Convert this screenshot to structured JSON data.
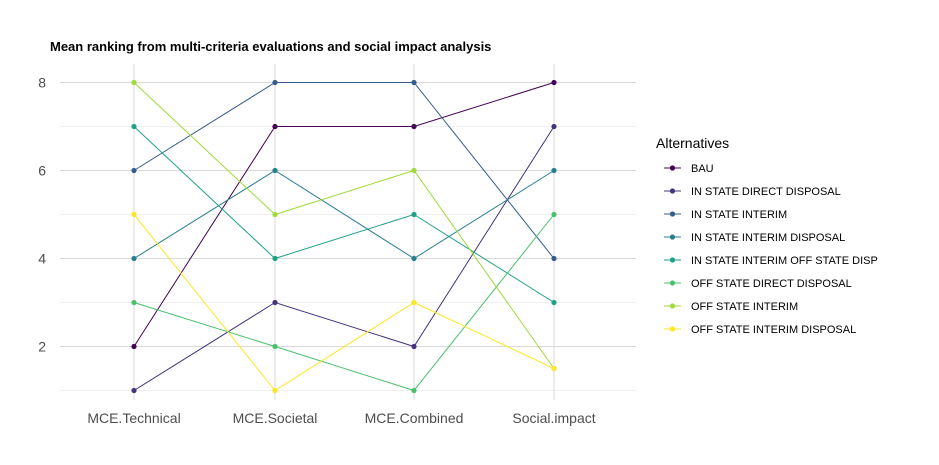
{
  "chart_data": {
    "type": "line",
    "title": "Mean ranking from multi-criteria evaluations and social impact analysis",
    "xlabel": "",
    "ylabel": "",
    "categories": [
      "MCE.Technical",
      "MCE.Societal",
      "MCE.Combined",
      "Social.impact"
    ],
    "ylim": [
      1,
      8
    ],
    "yticks": [
      2,
      4,
      6,
      8
    ],
    "grid": true,
    "legend_title": "Alternatives",
    "legend_position": "right",
    "series": [
      {
        "name": "BAU",
        "color": "#440154",
        "values": [
          2,
          7,
          7,
          8
        ]
      },
      {
        "name": "IN STATE DIRECT DISPOSAL",
        "color": "#46337E",
        "values": [
          1,
          3,
          2,
          7
        ]
      },
      {
        "name": "IN STATE INTERIM",
        "color": "#365C8D",
        "values": [
          6,
          8,
          8,
          4
        ]
      },
      {
        "name": "IN STATE INTERIM DISPOSAL",
        "color": "#277F8E",
        "values": [
          4,
          6,
          4,
          6
        ]
      },
      {
        "name": "IN STATE INTERIM OFF STATE DISP",
        "color": "#1FA187",
        "values": [
          7,
          4,
          5,
          3
        ]
      },
      {
        "name": "OFF STATE DIRECT DISPOSAL",
        "color": "#4AC16D",
        "values": [
          3,
          2,
          1,
          5
        ]
      },
      {
        "name": "OFF STATE INTERIM",
        "color": "#9FDA3A",
        "values": [
          8,
          5,
          6,
          1.5
        ]
      },
      {
        "name": "OFF STATE INTERIM DISPOSAL",
        "color": "#FDE725",
        "values": [
          5,
          1,
          3,
          1.5
        ]
      }
    ]
  }
}
